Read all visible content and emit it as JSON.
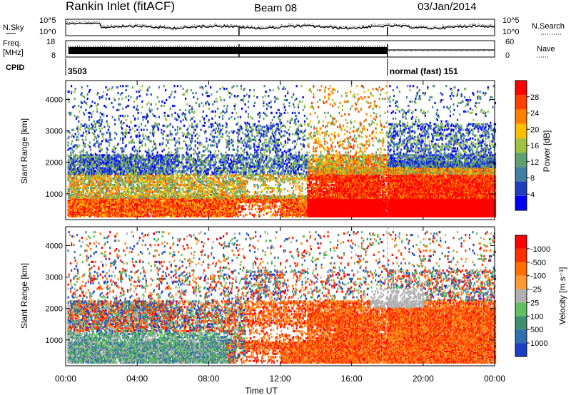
{
  "header": {
    "station": "Rankin Inlet (fitACF)",
    "beam": "Beam 08",
    "date": "03/Jan/2014"
  },
  "chart_data": [
    {
      "type": "line",
      "label": "N.Sky",
      "right_label": "N.Search",
      "left_ticks": [
        "10^5",
        "10^0"
      ],
      "right_ticks": [
        "10^5",
        "10^0"
      ],
      "series": [
        {
          "name": "N.Sky",
          "style": "solid"
        },
        {
          "name": "N.Search",
          "style": "dotted"
        }
      ]
    },
    {
      "type": "line",
      "label_line1": "Freq.",
      "label_line2": "[MHz]",
      "right_label": "Nave",
      "left_ticks": [
        "18",
        "8"
      ],
      "right_ticks": [
        "60",
        "0"
      ],
      "series": [
        {
          "name": "Freq.",
          "style": "solid"
        },
        {
          "name": "Nave",
          "style": "dotted"
        }
      ]
    },
    {
      "type": "table",
      "label": "CPID",
      "segments": [
        {
          "start_hour": 0,
          "end_hour": 18,
          "text": "3503"
        },
        {
          "start_hour": 18,
          "end_hour": 24,
          "text": "normal (fast) 151"
        }
      ]
    },
    {
      "type": "heatmap",
      "ylabel": "Slant Range [km]",
      "yticks": [
        1000,
        2000,
        3000,
        4000
      ],
      "ylim": [
        180,
        4600
      ],
      "xlim": [
        0,
        24
      ],
      "colorbar": {
        "label": "Power [dB]",
        "ticks": [
          "4",
          "8",
          "12",
          "16",
          "20",
          "24",
          "28"
        ],
        "colors": [
          "#0000ff",
          "#1f3fbf",
          "#3f7fa0",
          "#5fa070",
          "#9fc040",
          "#ffbf00",
          "#ff8000",
          "#ff4000",
          "#ff0000"
        ]
      }
    },
    {
      "type": "heatmap",
      "ylabel": "Slant Range [km]",
      "yticks": [
        1000,
        2000,
        3000,
        4000
      ],
      "ylim": [
        180,
        4600
      ],
      "xlim": [
        0,
        24
      ],
      "xlabel": "Time UT",
      "xticks": [
        "00:00",
        "04:00",
        "08:00",
        "12:00",
        "16:00",
        "20:00",
        "00:00"
      ],
      "colorbar": {
        "label": "Velocity [m s⁻¹]",
        "ticks": [
          "1000",
          "500",
          "100",
          "25",
          "-25",
          "-100",
          "-500",
          "-1000"
        ],
        "colors": [
          "#1a3fc8",
          "#2f6fb0",
          "#3f8f70",
          "#60c060",
          "#b0b0b0",
          "#ff9933",
          "#ff7000",
          "#ff3000",
          "#ff0000"
        ]
      }
    }
  ]
}
